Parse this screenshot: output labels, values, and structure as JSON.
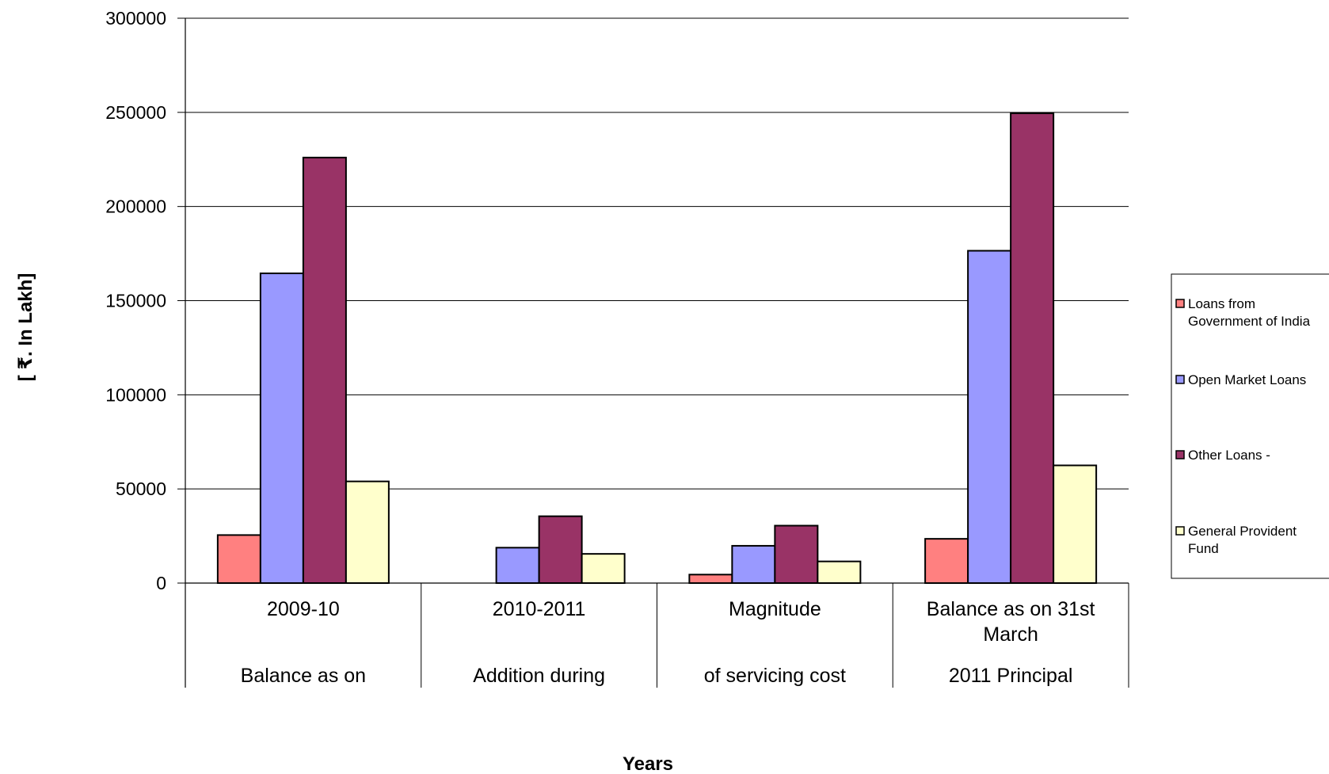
{
  "chart_data": {
    "type": "bar",
    "title": "",
    "xlabel": "Years",
    "ylabel": "[ ₹. In Lakh]",
    "ylim": [
      0,
      300000
    ],
    "yticks": [
      0,
      50000,
      100000,
      150000,
      200000,
      250000,
      300000
    ],
    "ytick_labels": [
      "0",
      "50000",
      "100000",
      "150000",
      "200000",
      "250000",
      "300000"
    ],
    "grid": true,
    "legend_position": "right",
    "categories": [
      {
        "line1": "2009-10",
        "line2": "",
        "line3": "Balance as on"
      },
      {
        "line1": "2010-2011",
        "line2": "",
        "line3": "Addition during"
      },
      {
        "line1": "Magnitude",
        "line2": "",
        "line3": "of servicing cost"
      },
      {
        "line1": "Balance as on 31st",
        "line2": "March",
        "line3": "2011 Principal"
      }
    ],
    "series": [
      {
        "name_lines": [
          "Loans from",
          "Government of India"
        ],
        "color": "#ff8080",
        "values": [
          25500,
          0,
          4500,
          23500
        ]
      },
      {
        "name_lines": [
          "Open Market Loans"
        ],
        "color": "#9999ff",
        "values": [
          164500,
          18800,
          19800,
          176500
        ]
      },
      {
        "name_lines": [
          "Other Loans -"
        ],
        "color": "#993366",
        "values": [
          226000,
          35500,
          30500,
          249500
        ]
      },
      {
        "name_lines": [
          "General Provident",
          "Fund"
        ],
        "color": "#ffffcc",
        "values": [
          54000,
          15500,
          11500,
          62500
        ]
      }
    ]
  }
}
